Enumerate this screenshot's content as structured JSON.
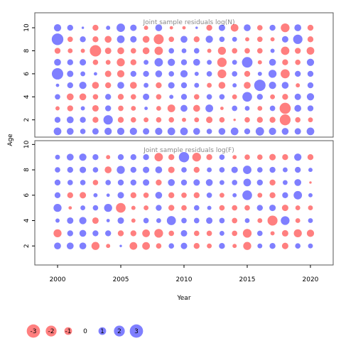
{
  "chart_data": {
    "type": "scatter",
    "ylabel": "Age",
    "xlabel": "Year",
    "colors": {
      "positive": "#0000ff",
      "negative": "#ff0000",
      "bubble_alpha": 0.5,
      "frame": "#555555"
    },
    "x_ticks": [
      2000,
      2005,
      2010,
      2015,
      2020
    ],
    "y_ticks": [
      2,
      4,
      6,
      8,
      10
    ],
    "xlim": [
      1998.2,
      2021.8
    ],
    "grid": false,
    "legend": {
      "placement": "bottom-left",
      "items": [
        {
          "label": "-3",
          "value": -3
        },
        {
          "label": "-2",
          "value": -2
        },
        {
          "label": "-1",
          "value": -1
        },
        {
          "label": "0",
          "value": 0
        },
        {
          "label": "1",
          "value": 1
        },
        {
          "label": "2",
          "value": 2
        },
        {
          "label": "3",
          "value": 3
        }
      ]
    },
    "panels": [
      {
        "title": "Joint sample residuals log(N)",
        "ylim": [
          0.5,
          11.3
        ],
        "years": [
          2000,
          2001,
          2002,
          2003,
          2004,
          2005,
          2006,
          2007,
          2008,
          2009,
          2010,
          2011,
          2012,
          2013,
          2014,
          2015,
          2016,
          2017,
          2018,
          2019,
          2020
        ],
        "ages": [
          1,
          2,
          3,
          4,
          5,
          6,
          7,
          8,
          9,
          10
        ],
        "residuals": [
          [
            1.0,
            0.8,
            0.5,
            0.7,
            0.9,
            0.9,
            0.9,
            0.7,
            0.9,
            1.0,
            1.0,
            0.8,
            0.5,
            0.8,
            1.0,
            0.6,
            1.2,
            0.9,
            0.8,
            0.7,
            1.0
          ],
          [
            0.6,
            0.8,
            0.6,
            -0.6,
            1.5,
            -0.6,
            -0.5,
            -0.4,
            -0.5,
            -0.5,
            -0.3,
            -0.4,
            -0.7,
            -0.5,
            -0.1,
            -0.5,
            -0.6,
            -0.6,
            -2.0,
            -0.5,
            -0.4
          ],
          [
            -0.3,
            -0.6,
            0.3,
            -0.7,
            0.6,
            -0.5,
            -0.4,
            0.2,
            -0.4,
            -1.0,
            0.8,
            -0.8,
            1.0,
            -0.2,
            0.5,
            0.4,
            -0.4,
            0.5,
            -2.1,
            0.8,
            0.6
          ],
          [
            0.5,
            -0.8,
            -0.8,
            -0.5,
            0.6,
            -0.6,
            -0.5,
            0.7,
            -0.5,
            0.3,
            0.6,
            -0.5,
            0.5,
            0.5,
            -0.4,
            1.6,
            0.6,
            -0.4,
            -0.6,
            0.7,
            0.9
          ],
          [
            0.2,
            0.6,
            0.9,
            -0.8,
            -0.6,
            0.8,
            -0.8,
            0.4,
            -0.6,
            0.7,
            0.6,
            0.4,
            -0.4,
            -0.8,
            0.3,
            -0.8,
            2.2,
            0.9,
            0.8,
            -0.3,
            0.6
          ],
          [
            2.2,
            0.7,
            0.4,
            0.2,
            -0.7,
            -0.9,
            0.6,
            0.6,
            0.8,
            0.5,
            0.9,
            0.3,
            0.5,
            -1.3,
            0.5,
            -0.6,
            0.3,
            1.1,
            -1.4,
            0.6,
            0.6
          ],
          [
            0.8,
            0.6,
            0.7,
            -0.5,
            -0.4,
            -1.1,
            -0.6,
            0.4,
            1.2,
            0.9,
            0.6,
            0.8,
            0.4,
            -1.5,
            0.4,
            1.9,
            -0.3,
            0.8,
            -0.6,
            -0.5,
            0.9
          ],
          [
            -0.6,
            -0.4,
            -0.3,
            -2.2,
            -0.7,
            -0.8,
            -0.5,
            -0.8,
            -1.2,
            0.5,
            0.4,
            0.5,
            -0.3,
            -1.1,
            -0.5,
            -0.5,
            -0.5,
            0.3,
            -1.2,
            -0.6,
            -1.0
          ],
          [
            2.3,
            -0.5,
            0.6,
            -0.6,
            -0.8,
            1.0,
            0.7,
            -0.8,
            -1.7,
            -0.5,
            0.8,
            -0.6,
            0.9,
            0.5,
            0.4,
            -0.3,
            -0.5,
            -0.3,
            0.7,
            1.5,
            -0.6
          ],
          [
            0.9,
            0.6,
            0.1,
            -0.6,
            0.3,
            1.2,
            0.7,
            -0.3,
            0.8,
            -0.2,
            -0.2,
            0.1,
            -0.6,
            0.7,
            -1.0,
            0.8,
            -0.5,
            0.6,
            -1.3,
            0.8,
            -0.6
          ]
        ]
      },
      {
        "title": "Joint sample residuals log(F)",
        "ylim": [
          0.5,
          10.3
        ],
        "years": [
          2000,
          2001,
          2002,
          2003,
          2004,
          2005,
          2006,
          2007,
          2008,
          2009,
          2010,
          2011,
          2012,
          2013,
          2014,
          2015,
          2016,
          2017,
          2018,
          2019,
          2020
        ],
        "ages": [
          2,
          3,
          4,
          5,
          6,
          7,
          8,
          9
        ],
        "residuals": [
          [
            0.8,
            0.8,
            0.8,
            -1.1,
            -0.3,
            0.1,
            -1.0,
            -1.0,
            -0.5,
            0.5,
            0.7,
            -0.6,
            -0.4,
            0.6,
            -0.3,
            -1.1,
            0.4,
            0.6,
            -0.7,
            0.5,
            0.4
          ],
          [
            -1.1,
            0.6,
            0.8,
            0.6,
            0.6,
            -0.6,
            -0.6,
            -1.0,
            -1.3,
            -0.5,
            0.7,
            -0.5,
            -0.5,
            0.4,
            -0.5,
            -1.3,
            0.5,
            -0.3,
            -0.7,
            -1.1,
            -0.9
          ],
          [
            0.3,
            0.7,
            0.9,
            -0.7,
            0.2,
            0.7,
            -0.3,
            0.5,
            0.4,
            1.4,
            0.5,
            0.5,
            0.7,
            0.5,
            -0.5,
            0.4,
            -0.4,
            -1.7,
            1.3,
            -0.4,
            0.4
          ],
          [
            1.1,
            -0.2,
            0.4,
            0.5,
            1.1,
            -1.6,
            -0.3,
            -0.4,
            0.6,
            -0.6,
            -0.5,
            0.5,
            0.3,
            -0.5,
            -0.5,
            -0.5,
            0.6,
            0.7,
            -0.7,
            -0.4,
            -0.4
          ],
          [
            0.6,
            -0.6,
            -0.7,
            0.3,
            0.2,
            0.7,
            -0.6,
            -0.5,
            0.8,
            -0.6,
            -0.5,
            -0.6,
            0.5,
            -0.4,
            0.3,
            1.6,
            -0.4,
            -0.6,
            0.6,
            1.2,
            0.3
          ],
          [
            0.6,
            0.5,
            0.5,
            -0.5,
            0.5,
            0.6,
            0.6,
            0.7,
            -0.6,
            0.8,
            0.6,
            0.7,
            0.8,
            0.4,
            0.5,
            1.0,
            0.6,
            -0.6,
            0.4,
            0.8,
            -0.1
          ],
          [
            0.5,
            0.6,
            0.7,
            0.5,
            -0.8,
            1.1,
            0.6,
            0.7,
            0.8,
            -0.7,
            0.5,
            -0.6,
            0.4,
            0.5,
            0.7,
            1.2,
            0.5,
            0.6,
            0.4,
            0.6,
            0.3
          ],
          [
            0.4,
            0.8,
            0.9,
            0.6,
            -0.3,
            0.6,
            0.6,
            0.6,
            -1.2,
            -0.6,
            1.8,
            -1.3,
            -0.6,
            0.5,
            -0.3,
            -0.5,
            -0.5,
            -0.7,
            -0.6,
            0.9,
            -0.6
          ]
        ]
      }
    ]
  }
}
